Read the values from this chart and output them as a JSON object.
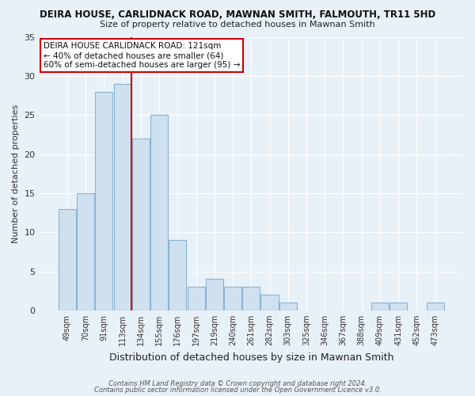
{
  "title1": "DEIRA HOUSE, CARLIDNACK ROAD, MAWNAN SMITH, FALMOUTH, TR11 5HD",
  "title2": "Size of property relative to detached houses in Mawnan Smith",
  "xlabel": "Distribution of detached houses by size in Mawnan Smith",
  "ylabel": "Number of detached properties",
  "bin_labels": [
    "49sqm",
    "70sqm",
    "91sqm",
    "113sqm",
    "134sqm",
    "155sqm",
    "176sqm",
    "197sqm",
    "219sqm",
    "240sqm",
    "261sqm",
    "282sqm",
    "303sqm",
    "325sqm",
    "346sqm",
    "367sqm",
    "388sqm",
    "409sqm",
    "431sqm",
    "452sqm",
    "473sqm"
  ],
  "bar_values": [
    13,
    15,
    28,
    29,
    22,
    25,
    9,
    3,
    4,
    3,
    3,
    2,
    1,
    0,
    0,
    0,
    0,
    1,
    1,
    0,
    1
  ],
  "bar_color": "#cfe0ef",
  "bar_edge_color": "#8ab4d0",
  "vline_x": 3.5,
  "vline_color": "#cc0000",
  "ylim": [
    0,
    35
  ],
  "yticks": [
    0,
    5,
    10,
    15,
    20,
    25,
    30,
    35
  ],
  "annotation_line1": "DEIRA HOUSE CARLIDNACK ROAD: 121sqm",
  "annotation_line2": "← 40% of detached houses are smaller (64)",
  "annotation_line3": "60% of semi-detached houses are larger (95) →",
  "annotation_box_color": "#ffffff",
  "annotation_box_edge": "#cc0000",
  "footer1": "Contains HM Land Registry data © Crown copyright and database right 2024.",
  "footer2": "Contains public sector information licensed under the Open Government Licence v3.0.",
  "background_color": "#e8f0f8"
}
